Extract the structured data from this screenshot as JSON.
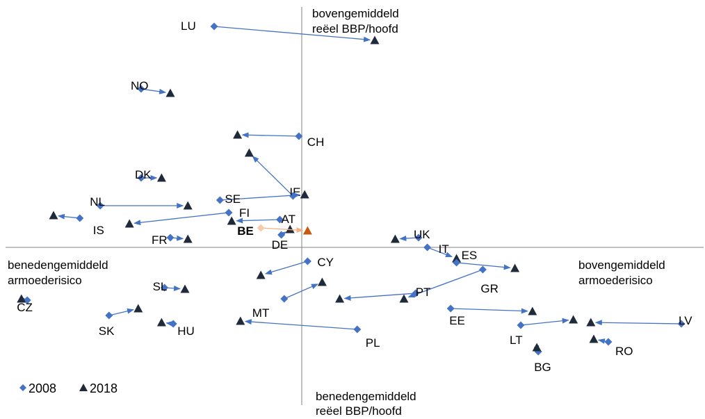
{
  "chart_data": {
    "type": "scatter",
    "title": "",
    "xlabel": "",
    "ylabel": "",
    "xlim": [
      -10,
      13
    ],
    "ylim": [
      -6.75,
      8.1
    ],
    "grid": false,
    "legend_placement": "bottom-left",
    "quadrant_labels": {
      "top": [
        "bovengemiddeld",
        "reëel BBP/hoofd"
      ],
      "bottom": [
        "benedengemiddeld",
        "reëel BBP/hoofd"
      ],
      "left": [
        "benedengemiddeld",
        "armoederisico"
      ],
      "right": [
        "bovengemiddeld",
        "armoederisico"
      ]
    },
    "series": [
      {
        "name": "2008",
        "marker": "diamond",
        "color": "#4472c4"
      },
      {
        "name": "2018",
        "marker": "triangle",
        "color": "#1f2a3a"
      }
    ],
    "highlight_colors": {
      "2008": "#f8cbad",
      "2018": "#c55a11",
      "arrow": "#f4b183"
    },
    "countries": [
      {
        "code": "LU",
        "x2008": -3.0,
        "y2008": 7.95,
        "x2018": 2.5,
        "y2018": 7.45
      },
      {
        "code": "NO",
        "x2008": -5.5,
        "y2008": 5.7,
        "x2018": -4.5,
        "y2018": 5.55
      },
      {
        "code": "CH",
        "x2008": -0.1,
        "y2008": 4.0,
        "x2018": -2.2,
        "y2018": 4.05
      },
      {
        "code": "DK",
        "x2008": -5.5,
        "y2008": 2.5,
        "x2018": -4.8,
        "y2018": 2.5
      },
      {
        "code": "IE",
        "x2008": -0.3,
        "y2008": 1.85,
        "x2018": -1.8,
        "y2018": 3.4
      },
      {
        "code": "SE",
        "x2008": -2.8,
        "y2008": 1.7,
        "x2018": 0.1,
        "y2018": 1.9
      },
      {
        "code": "NL",
        "x2008": -6.9,
        "y2008": 1.5,
        "x2018": -3.9,
        "y2018": 1.5
      },
      {
        "code": "IS",
        "x2008": -7.6,
        "y2008": 1.05,
        "x2018": -8.5,
        "y2018": 1.15
      },
      {
        "code": "FI",
        "x2008": -2.5,
        "y2008": 1.25,
        "x2018": -5.9,
        "y2018": 0.85
      },
      {
        "code": "AT",
        "x2008": -0.75,
        "y2008": 1.0,
        "x2018": -2.4,
        "y2018": 0.95
      },
      {
        "code": "FR",
        "x2008": -4.5,
        "y2008": 0.35,
        "x2018": -3.9,
        "y2018": 0.3
      },
      {
        "code": "DE",
        "x2008": -0.7,
        "y2008": 0.45,
        "x2018": -0.4,
        "y2018": 0.65
      },
      {
        "code": "BE",
        "x2008": -1.4,
        "y2008": 0.7,
        "x2018": 0.2,
        "y2018": 0.6,
        "highlight": true
      },
      {
        "code": "UK",
        "x2008": 4.0,
        "y2008": 0.35,
        "x2018": 3.2,
        "y2018": 0.3
      },
      {
        "code": "IT",
        "x2008": 4.3,
        "y2008": 0.0,
        "x2018": 5.3,
        "y2018": -0.4
      },
      {
        "code": "ES",
        "x2008": 5.3,
        "y2008": -0.55,
        "x2018": 7.3,
        "y2018": -0.75
      },
      {
        "code": "GR",
        "x2008": 6.2,
        "y2008": -0.8,
        "x2018": 3.5,
        "y2018": -1.85
      },
      {
        "code": "PT",
        "x2008": 3.9,
        "y2008": -1.65,
        "x2018": 1.3,
        "y2018": -1.85
      },
      {
        "code": "CY",
        "x2008": 0.2,
        "y2008": -0.5,
        "x2018": -1.4,
        "y2018": -1.0
      },
      {
        "code": "MT",
        "x2008": -0.6,
        "y2008": -1.85,
        "x2018": 0.7,
        "y2018": -1.25
      },
      {
        "code": "CZ",
        "x2008": -9.4,
        "y2008": -1.9,
        "x2018": -9.6,
        "y2018": -1.85
      },
      {
        "code": "SL",
        "x2008": -4.7,
        "y2008": -1.45,
        "x2018": -4.0,
        "y2018": -1.5
      },
      {
        "code": "SK",
        "x2008": -6.6,
        "y2008": -2.45,
        "x2018": -5.6,
        "y2018": -2.2
      },
      {
        "code": "HU",
        "x2008": -4.4,
        "y2008": -2.75,
        "x2018": -4.8,
        "y2018": -2.7
      },
      {
        "code": "PL",
        "x2008": 1.9,
        "y2008": -2.95,
        "x2018": -2.1,
        "y2018": -2.65
      },
      {
        "code": "EE",
        "x2008": 5.1,
        "y2008": -2.2,
        "x2018": 7.9,
        "y2018": -2.3
      },
      {
        "code": "LT",
        "x2008": 7.5,
        "y2008": -2.8,
        "x2018": 9.3,
        "y2018": -2.6
      },
      {
        "code": "LV",
        "x2008": 13.0,
        "y2008": -2.75,
        "x2018": 9.9,
        "y2018": -2.7
      },
      {
        "code": "BG",
        "x2008": 8.1,
        "y2008": -3.75,
        "x2018": 8.05,
        "y2018": -3.6
      },
      {
        "code": "RO",
        "x2008": 10.5,
        "y2008": -3.4,
        "x2018": 10.0,
        "y2018": -3.3
      }
    ]
  }
}
